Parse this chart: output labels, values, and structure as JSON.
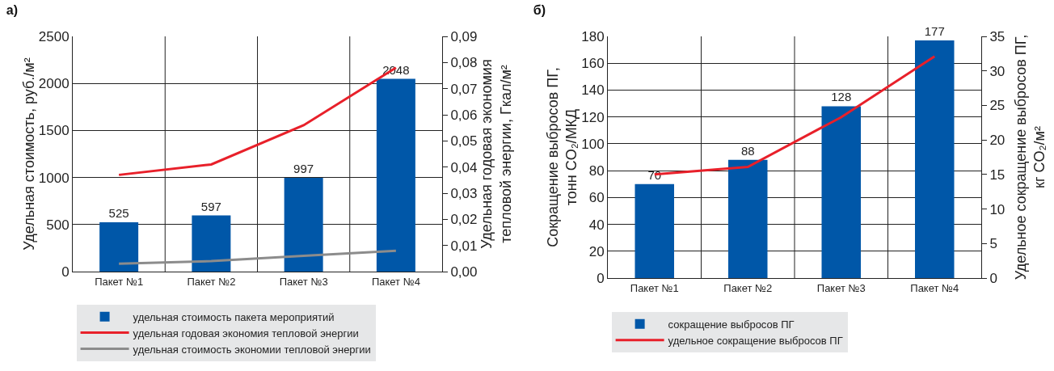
{
  "chart_data": [
    {
      "type": "bar",
      "title": "а)",
      "categories": [
        "Пакет №1",
        "Пакет №2",
        "Пакет №3",
        "Пакет №4"
      ],
      "ylabel": "Удельная стоимость, руб./м²",
      "y2label": "Удельная годовая экономия\nтепловой энергии, Гкал/м²",
      "series": [
        {
          "name": "удельная стоимость пакета мероприятий",
          "color": "#0057a8",
          "values": [
            525,
            597,
            997,
            2048
          ],
          "value_labels": [
            "525",
            "597",
            "997",
            "2048"
          ]
        },
        {
          "name": "удельная годовая экономия тепловой энергии",
          "type": "line",
          "axis": "y2",
          "color": "#e8202a",
          "values": [
            0.037,
            0.041,
            0.056,
            0.078
          ]
        },
        {
          "name": "удельная стоимость экономии тепловой энергии",
          "type": "line",
          "axis": "y2",
          "color": "#8c8c8c",
          "values": [
            0.003,
            0.004,
            0.006,
            0.008
          ]
        }
      ],
      "ylim": [
        0,
        2500
      ],
      "yticks": [
        0,
        500,
        1000,
        1500,
        2000,
        2500
      ],
      "y2lim": [
        0,
        0.09
      ],
      "y2ticks": [
        {
          "value": 0,
          "label": "0,00"
        },
        {
          "value": 0.01,
          "label": "0,01"
        },
        {
          "value": 0.02,
          "label": "0,02"
        },
        {
          "value": 0.03,
          "label": "0,03"
        },
        {
          "value": 0.04,
          "label": "0,04"
        },
        {
          "value": 0.05,
          "label": "0,05"
        },
        {
          "value": 0.06,
          "label": "0,06"
        },
        {
          "value": 0.07,
          "label": "0,07"
        },
        {
          "value": 0.08,
          "label": "0,08"
        },
        {
          "value": 0.09,
          "label": "0,09"
        }
      ],
      "grid": true,
      "legend": "bottom"
    },
    {
      "type": "bar",
      "title": "б)",
      "categories": [
        "Пакет №1",
        "Пакет №2",
        "Пакет №3",
        "Пакет №4"
      ],
      "ylabel": "Сокращение выбросов ПГ,\nтонн CO₂/МКД",
      "y2label": "Удельное сокращение выбросов ПГ,\nкг CO₂/м²",
      "series": [
        {
          "name": "сокращение выбросов ПГ",
          "color": "#0057a8",
          "values": [
            70,
            88,
            128,
            177
          ],
          "value_labels": [
            "70",
            "88",
            "128",
            "177"
          ]
        },
        {
          "name": "удельное сокращение выбросов ПГ",
          "type": "line",
          "axis": "y2",
          "color": "#e8202a",
          "values": [
            15,
            16.1,
            23.3,
            32.1
          ]
        }
      ],
      "ylim": [
        0,
        180
      ],
      "yticks": [
        0,
        20,
        40,
        60,
        80,
        100,
        120,
        140,
        160,
        180
      ],
      "y2lim": [
        0,
        35
      ],
      "y2ticks": [
        0,
        5,
        10,
        15,
        20,
        25,
        30,
        35
      ],
      "grid": true,
      "legend": "bottom"
    }
  ]
}
